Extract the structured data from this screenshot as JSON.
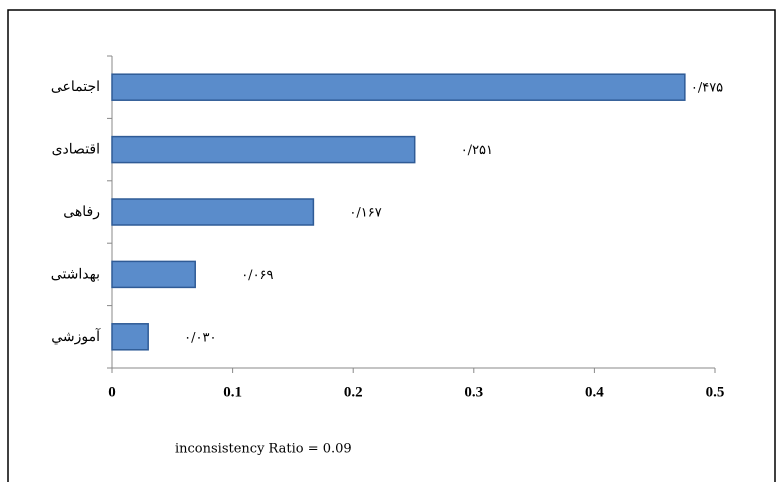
{
  "chart_data": {
    "type": "bar",
    "orientation": "horizontal",
    "categories": [
      "اجتماعی",
      "اقتصادی",
      "رفاهی",
      "بهداشتی",
      "آموزشي"
    ],
    "values": [
      0.475,
      0.251,
      0.167,
      0.069,
      0.03
    ],
    "value_labels": [
      "۰/۴۷۵",
      "۰/۲۵۱",
      "۰/۱۶۷",
      "۰/۰۶۹",
      "۰/۰۳۰"
    ],
    "color": "#5a8ccb",
    "xlim": [
      0,
      0.5
    ],
    "xticks": [
      0,
      0.1,
      0.2,
      0.3,
      0.4,
      0.5
    ],
    "grid": false,
    "annotation": "inconsistency Ratio = 0.09"
  }
}
